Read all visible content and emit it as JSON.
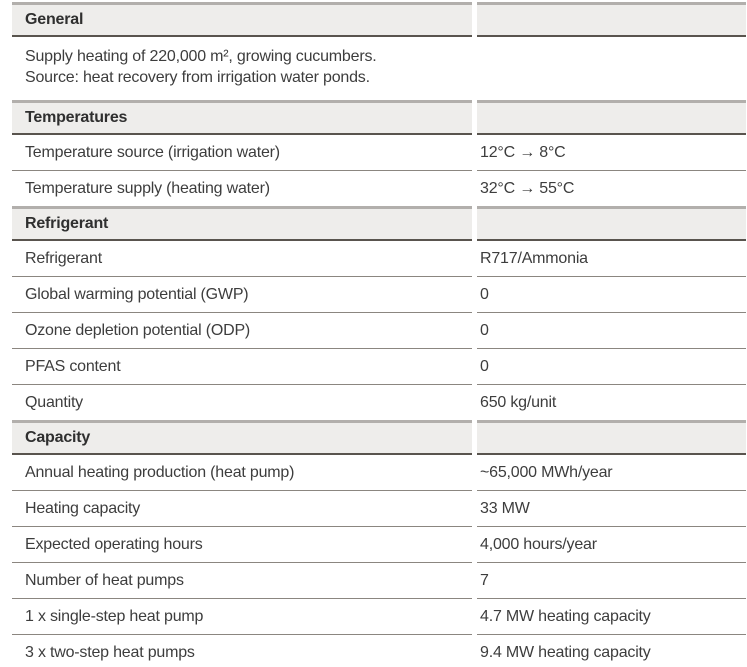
{
  "table": {
    "colors": {
      "header_bg": "#eeedeb",
      "section_top_border": "#b2afac",
      "header_bottom_border": "#59544e",
      "row_divider": "#8b8680",
      "text": "#3d3d3d"
    },
    "sections": [
      {
        "title": "General",
        "description_lines": [
          "Supply heating of 220,000 m², growing cucumbers.",
          "Source: heat recovery from irrigation water ponds."
        ],
        "rows": []
      },
      {
        "title": "Temperatures",
        "rows": [
          {
            "label": "Temperature source (irrigation water)",
            "value": "12°C → 8°C"
          },
          {
            "label": "Temperature supply (heating water)",
            "value": "32°C → 55°C"
          }
        ]
      },
      {
        "title": "Refrigerant",
        "rows": [
          {
            "label": "Refrigerant",
            "value": "R717/Ammonia"
          },
          {
            "label": "Global warming potential (GWP)",
            "value": "0"
          },
          {
            "label": "Ozone depletion potential (ODP)",
            "value": "0"
          },
          {
            "label": "PFAS content",
            "value": "0"
          },
          {
            "label": "Quantity",
            "value": "650 kg/unit"
          }
        ]
      },
      {
        "title": "Capacity",
        "rows": [
          {
            "label": "Annual heating production (heat pump)",
            "value": "~65,000 MWh/year"
          },
          {
            "label": "Heating capacity",
            "value": "33 MW"
          },
          {
            "label": "Expected operating hours",
            "value": "4,000 hours/year"
          },
          {
            "label": "Number of heat pumps",
            "value": "7"
          },
          {
            "label": "1 x single-step heat pump",
            "value": "4.7 MW heating capacity"
          },
          {
            "label": "3 x two-step heat pumps",
            "value": "9.4 MW heating capacity"
          }
        ]
      }
    ]
  }
}
